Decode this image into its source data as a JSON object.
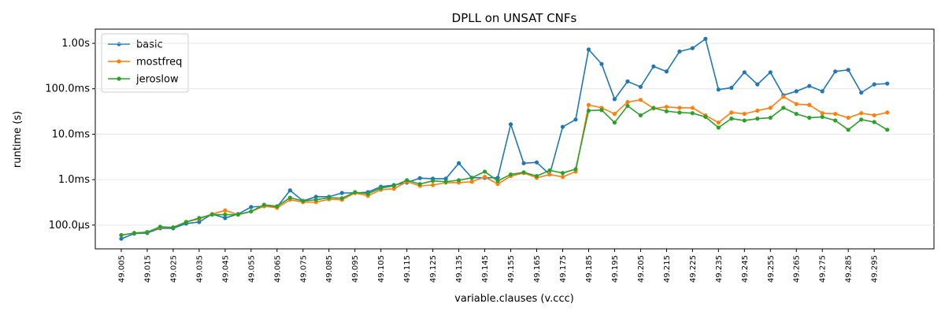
{
  "chart_data": {
    "type": "line",
    "title": "DPLL on UNSAT CNFs",
    "x_label": "variable.clauses (v.ccc)",
    "y_label": "runtime (s)",
    "log_y": true,
    "grid": true,
    "legend": "upper left",
    "x": [
      49.005,
      49.01,
      49.015,
      49.02,
      49.025,
      49.03,
      49.035,
      49.04,
      49.045,
      49.05,
      49.055,
      49.06,
      49.065,
      49.07,
      49.075,
      49.08,
      49.085,
      49.09,
      49.095,
      49.1,
      49.105,
      49.11,
      49.115,
      49.12,
      49.125,
      49.13,
      49.135,
      49.14,
      49.145,
      49.15,
      49.155,
      49.16,
      49.165,
      49.17,
      49.175,
      49.18,
      49.185,
      49.19,
      49.195,
      49.2,
      49.205,
      49.21,
      49.215,
      49.22,
      49.225,
      49.23,
      49.235,
      49.24,
      49.245,
      49.25,
      49.255,
      49.26,
      49.265,
      49.27,
      49.275,
      49.28,
      49.285,
      49.29,
      49.295,
      49.3
    ],
    "xlim": [
      48.995,
      49.318
    ],
    "xticks": [
      49.005,
      49.015,
      49.025,
      49.035,
      49.045,
      49.055,
      49.065,
      49.075,
      49.085,
      49.095,
      49.105,
      49.115,
      49.125,
      49.135,
      49.145,
      49.155,
      49.165,
      49.175,
      49.185,
      49.195,
      49.205,
      49.215,
      49.225,
      49.235,
      49.245,
      49.255,
      49.265,
      49.275,
      49.285,
      49.295
    ],
    "ylim": [
      3e-05,
      2.05
    ],
    "yticks": [
      {
        "value": 0.0001,
        "label": "100.0µs"
      },
      {
        "value": 0.001,
        "label": "1.0ms"
      },
      {
        "value": 0.01,
        "label": "10.0ms"
      },
      {
        "value": 0.1,
        "label": "100.0ms"
      },
      {
        "value": 1,
        "label": "1.00s"
      }
    ],
    "series": [
      {
        "name": "basic",
        "color": "#1f77b4",
        "values": [
          5e-05,
          6.5e-05,
          6.7e-05,
          8.5e-05,
          8.5e-05,
          0.000108,
          0.000117,
          0.000175,
          0.000143,
          0.000175,
          0.00025,
          0.00026,
          0.00025,
          0.00058,
          0.00034,
          0.00042,
          0.00042,
          0.00051,
          0.00051,
          0.00053,
          0.0007,
          0.00076,
          0.00086,
          0.00108,
          0.00105,
          0.00105,
          0.0023,
          0.0011,
          0.0011,
          0.0011,
          0.0165,
          0.0023,
          0.0024,
          0.0013,
          0.0145,
          0.021,
          0.73,
          0.35,
          0.059,
          0.145,
          0.11,
          0.31,
          0.24,
          0.66,
          0.78,
          1.25,
          0.096,
          0.105,
          0.23,
          0.125,
          0.23,
          0.072,
          0.088,
          0.115,
          0.088,
          0.24,
          0.26,
          0.082,
          0.125,
          0.13
        ]
      },
      {
        "name": "mostfreq",
        "color": "#ff7f0e",
        "values": [
          6e-05,
          6.7e-05,
          7e-05,
          8.9e-05,
          8.9e-05,
          0.000117,
          0.000137,
          0.000175,
          0.00021,
          0.00017,
          0.0002,
          0.00026,
          0.00024,
          0.00036,
          0.00032,
          0.00032,
          0.00037,
          0.00036,
          0.00051,
          0.00044,
          0.0006,
          0.00063,
          0.0009,
          0.00073,
          0.00076,
          0.00086,
          0.00086,
          0.0009,
          0.00115,
          0.0008,
          0.0012,
          0.0014,
          0.0011,
          0.0013,
          0.00115,
          0.0015,
          0.044,
          0.038,
          0.028,
          0.051,
          0.057,
          0.037,
          0.04,
          0.038,
          0.038,
          0.026,
          0.018,
          0.03,
          0.028,
          0.033,
          0.038,
          0.067,
          0.046,
          0.044,
          0.029,
          0.028,
          0.023,
          0.029,
          0.026,
          0.03
        ]
      },
      {
        "name": "jeroslow",
        "color": "#2ca02c",
        "values": [
          6e-05,
          6.7e-05,
          7e-05,
          9.2e-05,
          8.9e-05,
          0.000117,
          0.000143,
          0.00017,
          0.00017,
          0.00017,
          0.0002,
          0.00028,
          0.00026,
          0.0004,
          0.00034,
          0.00036,
          0.0004,
          0.00039,
          0.00053,
          0.00049,
          0.00065,
          0.00073,
          0.00097,
          0.0008,
          0.00094,
          0.0009,
          0.00097,
          0.0011,
          0.0015,
          0.00094,
          0.0013,
          0.00145,
          0.0012,
          0.0016,
          0.0014,
          0.0017,
          0.033,
          0.034,
          0.018,
          0.042,
          0.026,
          0.038,
          0.032,
          0.03,
          0.029,
          0.024,
          0.014,
          0.022,
          0.02,
          0.022,
          0.023,
          0.038,
          0.028,
          0.023,
          0.024,
          0.02,
          0.0125,
          0.021,
          0.0185,
          0.0125
        ]
      }
    ]
  }
}
